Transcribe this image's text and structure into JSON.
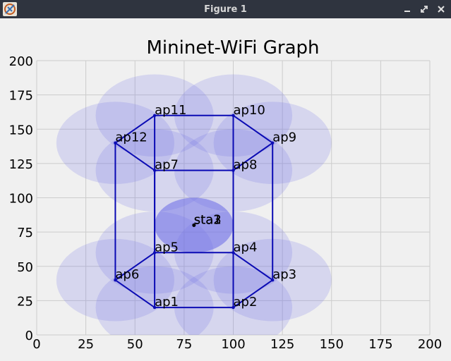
{
  "window": {
    "title": "Figure 1",
    "icons": {
      "app": "figure-app-icon",
      "minimize": "minimize-icon",
      "restore": "restore-icon",
      "close": "close-icon"
    }
  },
  "chart_data": {
    "type": "scatter",
    "title": "Mininet-WiFi Graph",
    "xlabel": "",
    "ylabel": "",
    "xlim": [
      0,
      200
    ],
    "ylim": [
      0,
      200
    ],
    "grid": true,
    "xticks": [
      0,
      25,
      50,
      75,
      100,
      125,
      150,
      175,
      200
    ],
    "yticks": [
      0,
      25,
      50,
      75,
      100,
      125,
      150,
      175,
      200
    ],
    "range_color": "#6e6ee6",
    "link_color": "#0b0bb4",
    "access_points": [
      {
        "name": "ap1",
        "x": 60,
        "y": 20,
        "range": 30
      },
      {
        "name": "ap2",
        "x": 100,
        "y": 20,
        "range": 30
      },
      {
        "name": "ap3",
        "x": 120,
        "y": 40,
        "range": 30
      },
      {
        "name": "ap4",
        "x": 100,
        "y": 60,
        "range": 30
      },
      {
        "name": "ap5",
        "x": 60,
        "y": 60,
        "range": 30
      },
      {
        "name": "ap6",
        "x": 40,
        "y": 40,
        "range": 30
      },
      {
        "name": "ap7",
        "x": 60,
        "y": 120,
        "range": 30
      },
      {
        "name": "ap8",
        "x": 100,
        "y": 120,
        "range": 30
      },
      {
        "name": "ap9",
        "x": 120,
        "y": 140,
        "range": 30
      },
      {
        "name": "ap10",
        "x": 100,
        "y": 160,
        "range": 30
      },
      {
        "name": "ap11",
        "x": 60,
        "y": 160,
        "range": 30
      },
      {
        "name": "ap12",
        "x": 40,
        "y": 140,
        "range": 30
      }
    ],
    "stations": [
      {
        "name": "sta1",
        "x": 80,
        "y": 80,
        "range": 20
      },
      {
        "name": "sta2",
        "x": 80,
        "y": 80,
        "range": 20
      },
      {
        "name": "sta3",
        "x": 80,
        "y": 80,
        "range": 20
      }
    ],
    "links": [
      [
        "ap1",
        "ap2"
      ],
      [
        "ap2",
        "ap3"
      ],
      [
        "ap3",
        "ap4"
      ],
      [
        "ap4",
        "ap5"
      ],
      [
        "ap5",
        "ap6"
      ],
      [
        "ap6",
        "ap1"
      ],
      [
        "ap7",
        "ap8"
      ],
      [
        "ap8",
        "ap9"
      ],
      [
        "ap9",
        "ap10"
      ],
      [
        "ap10",
        "ap11"
      ],
      [
        "ap11",
        "ap12"
      ],
      [
        "ap12",
        "ap7"
      ],
      [
        "ap1",
        "ap7"
      ],
      [
        "ap2",
        "ap8"
      ],
      [
        "ap3",
        "ap9"
      ],
      [
        "ap4",
        "ap10"
      ],
      [
        "ap5",
        "ap11"
      ],
      [
        "ap6",
        "ap12"
      ]
    ]
  }
}
